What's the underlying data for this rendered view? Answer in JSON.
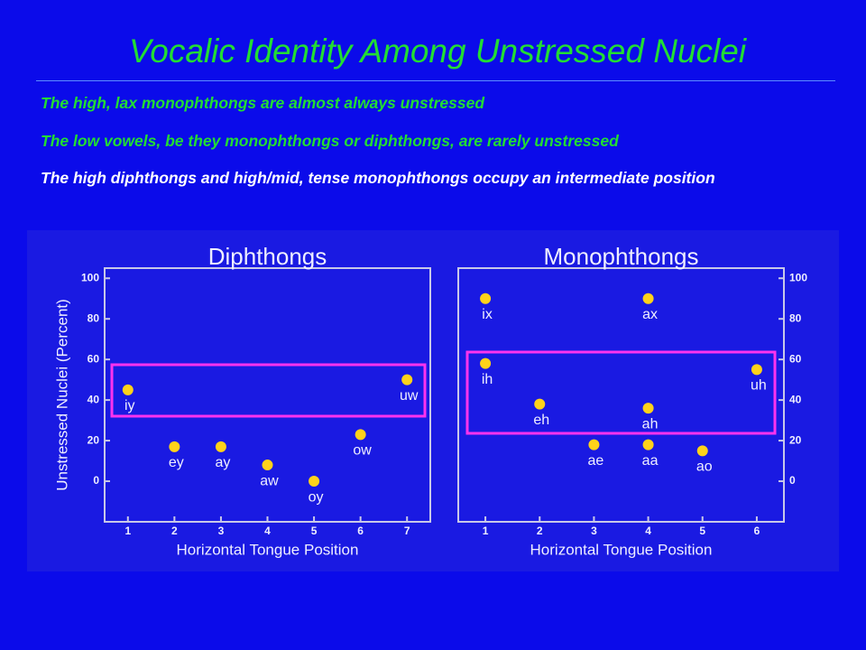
{
  "title": "Vocalic Identity Among Unstressed Nuclei",
  "bullets": [
    "The high, lax monophthongs are almost always unstressed",
    "The low vowels, be they monophthongs or diphthongs, are rarely unstressed",
    "The high diphthongs and high/mid, tense monophthongs occupy an intermediate position"
  ],
  "chart_data": [
    {
      "type": "scatter",
      "title": "Diphthongs",
      "x_label": "Horizontal Tongue Position",
      "y_label": "Unstressed Nuclei (Percent)",
      "labels": [
        "iy",
        "ey",
        "ay",
        "aw",
        "oy",
        "ow",
        "uw"
      ],
      "x": [
        1,
        2,
        3,
        4,
        5,
        6,
        7
      ],
      "values": [
        45,
        17,
        17,
        8,
        0,
        23,
        50
      ],
      "color": "#ffd21a",
      "xlim": [
        0.5,
        7.5
      ],
      "xticks": [
        1,
        2,
        3,
        4,
        5,
        6,
        7
      ],
      "ylim": [
        -20,
        105
      ],
      "yticks": [
        0,
        20,
        40,
        60,
        80,
        100
      ],
      "y_axis_side": "left"
    },
    {
      "type": "scatter",
      "title": "Monophthongs",
      "x_label": "Horizontal Tongue Position",
      "labels": [
        "ix",
        "ax",
        "ih",
        "uh",
        "eh",
        "ah",
        "ae",
        "aa",
        "ao"
      ],
      "x": [
        1,
        4,
        1,
        6,
        2,
        4,
        3,
        4,
        5
      ],
      "values": [
        90,
        90,
        58,
        55,
        38,
        36,
        18,
        18,
        15
      ],
      "color": "#ffd21a",
      "xlim": [
        0.5,
        6.5
      ],
      "xticks": [
        1,
        2,
        3,
        4,
        5,
        6
      ],
      "ylim": [
        -20,
        105
      ],
      "yticks": [
        0,
        20,
        40,
        60,
        80,
        100
      ],
      "y_axis_side": "right"
    }
  ]
}
